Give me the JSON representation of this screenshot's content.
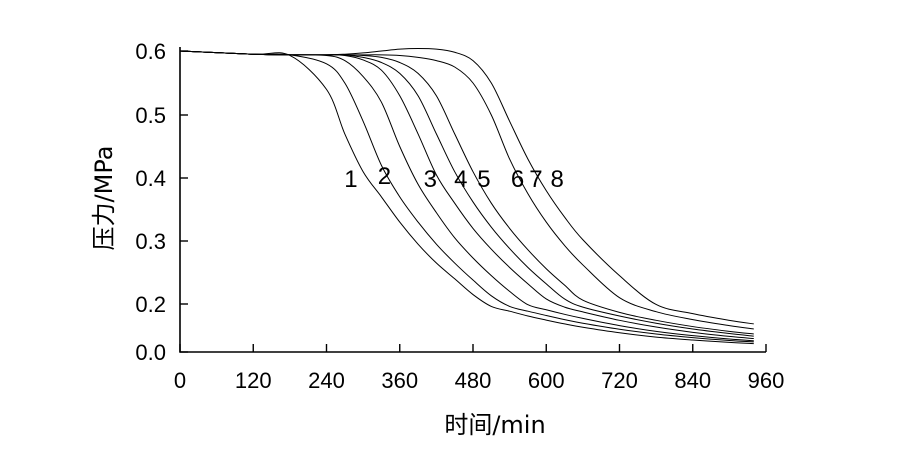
{
  "chart_data": {
    "type": "line",
    "title": "",
    "xlabel": "时间/min",
    "ylabel": "压力/MPa",
    "xlim": [
      0,
      960
    ],
    "ylim": [
      0,
      0.6
    ],
    "xticks": [
      "0",
      "120",
      "240",
      "360",
      "480",
      "600",
      "720",
      "840",
      "960"
    ],
    "yticks": [
      "0.0",
      "0.2",
      "0.3",
      "0.4",
      "0.5",
      "0.6"
    ],
    "grid": false,
    "legend": "inline curve labels",
    "x": [
      0,
      120,
      180,
      240,
      270,
      300,
      330,
      360,
      390,
      420,
      450,
      480,
      510,
      540,
      570,
      600,
      630,
      660,
      720,
      780,
      840,
      900,
      940
    ],
    "series": [
      {
        "name": "1",
        "values": [
          0.6,
          0.595,
          0.593,
          0.54,
          0.47,
          0.41,
          0.37,
          0.33,
          0.295,
          0.265,
          0.24,
          0.215,
          0.19,
          0.17,
          0.15,
          0.133,
          0.117,
          0.103,
          0.08,
          0.062,
          0.05,
          0.04,
          0.035
        ]
      },
      {
        "name": "2",
        "values": [
          0.6,
          0.595,
          0.594,
          0.58,
          0.55,
          0.49,
          0.42,
          0.37,
          0.33,
          0.295,
          0.265,
          0.238,
          0.213,
          0.19,
          0.17,
          0.152,
          0.135,
          0.12,
          0.095,
          0.075,
          0.06,
          0.048,
          0.042
        ]
      },
      {
        "name": "3",
        "values": [
          0.6,
          0.595,
          0.594,
          0.593,
          0.585,
          0.56,
          0.52,
          0.45,
          0.39,
          0.345,
          0.305,
          0.273,
          0.245,
          0.22,
          0.197,
          0.176,
          0.157,
          0.14,
          0.11,
          0.086,
          0.068,
          0.054,
          0.047
        ]
      },
      {
        "name": "4",
        "values": [
          0.6,
          0.595,
          0.594,
          0.594,
          0.593,
          0.586,
          0.57,
          0.53,
          0.47,
          0.405,
          0.36,
          0.32,
          0.287,
          0.258,
          0.232,
          0.208,
          0.187,
          0.167,
          0.132,
          0.104,
          0.082,
          0.065,
          0.056
        ]
      },
      {
        "name": "5",
        "values": [
          0.6,
          0.595,
          0.594,
          0.594,
          0.594,
          0.59,
          0.582,
          0.565,
          0.53,
          0.47,
          0.41,
          0.362,
          0.322,
          0.288,
          0.258,
          0.232,
          0.208,
          0.187,
          0.15,
          0.12,
          0.096,
          0.077,
          0.066
        ]
      },
      {
        "name": "6",
        "values": [
          0.6,
          0.595,
          0.594,
          0.594,
          0.594,
          0.593,
          0.59,
          0.582,
          0.565,
          0.53,
          0.47,
          0.41,
          0.36,
          0.32,
          0.286,
          0.256,
          0.23,
          0.206,
          0.165,
          0.132,
          0.106,
          0.086,
          0.075
        ]
      },
      {
        "name": "7",
        "values": [
          0.6,
          0.595,
          0.594,
          0.594,
          0.594,
          0.594,
          0.594,
          0.593,
          0.59,
          0.585,
          0.575,
          0.55,
          0.5,
          0.43,
          0.375,
          0.33,
          0.293,
          0.262,
          0.21,
          0.168,
          0.135,
          0.11,
          0.096
        ]
      },
      {
        "name": "8",
        "values": [
          0.6,
          0.595,
          0.594,
          0.594,
          0.595,
          0.597,
          0.6,
          0.603,
          0.604,
          0.603,
          0.598,
          0.585,
          0.55,
          0.49,
          0.43,
          0.38,
          0.338,
          0.302,
          0.245,
          0.198,
          0.16,
          0.132,
          0.117
        ]
      }
    ],
    "labels": [
      {
        "text": "1",
        "x": 280,
        "y": 0.4
      },
      {
        "text": "2",
        "x": 335,
        "y": 0.405
      },
      {
        "text": "3",
        "x": 410,
        "y": 0.4
      },
      {
        "text": "4",
        "x": 460,
        "y": 0.4
      },
      {
        "text": "5",
        "x": 498,
        "y": 0.4
      },
      {
        "text": "6",
        "x": 553,
        "y": 0.4
      },
      {
        "text": "7",
        "x": 583,
        "y": 0.4
      },
      {
        "text": "8",
        "x": 618,
        "y": 0.4
      }
    ]
  }
}
